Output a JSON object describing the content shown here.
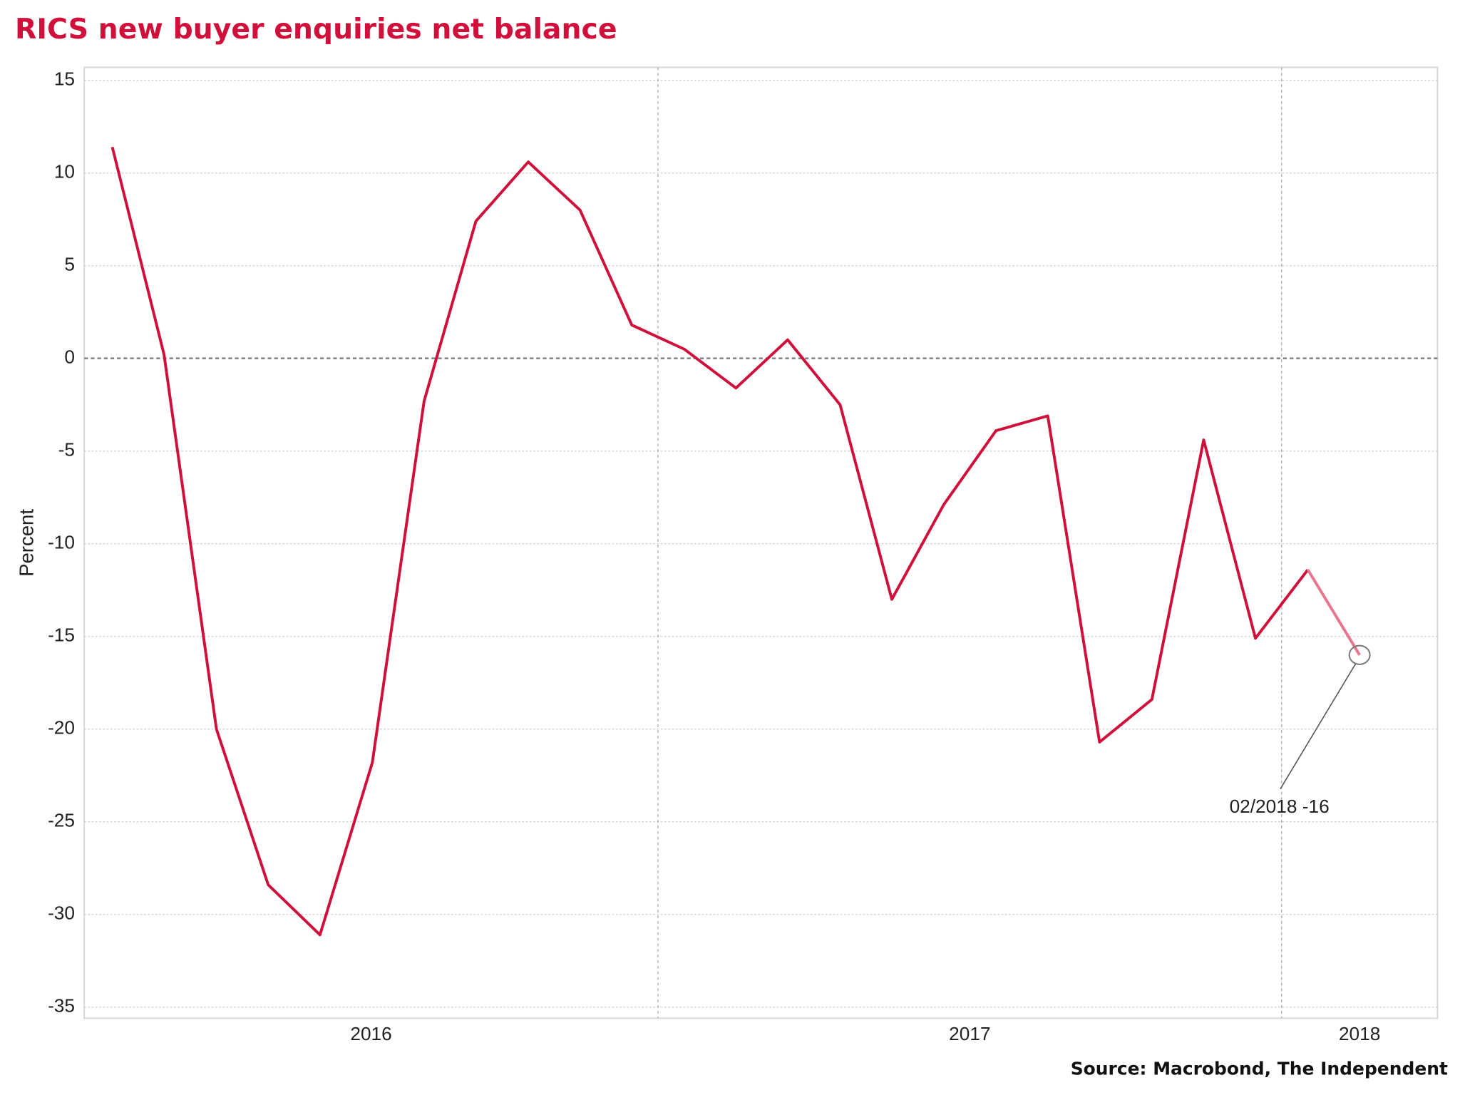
{
  "chart_data": {
    "type": "line",
    "title": "RICS new buyer enquiries net balance",
    "y_label": "Percent",
    "source": "Source: Macrobond, The Independent",
    "x": [
      2016.125,
      2016.208,
      2016.292,
      2016.375,
      2016.458,
      2016.542,
      2016.625,
      2016.708,
      2016.792,
      2016.875,
      2016.958,
      2017.042,
      2017.125,
      2017.208,
      2017.292,
      2017.375,
      2017.458,
      2017.542,
      2017.625,
      2017.708,
      2017.792,
      2017.875,
      2017.958,
      2018.042,
      2018.125
    ],
    "series": [
      {
        "name": "RICS new buyer enquiries net balance",
        "color": "#d0103a",
        "last_color": "#e8758e",
        "values": [
          11.4,
          0.2,
          -20,
          -28.4,
          -31.1,
          -21.8,
          -2.3,
          7.4,
          10.6,
          8.0,
          1.8,
          0.5,
          -1.6,
          1.0,
          -2.5,
          -13.0,
          -7.9,
          -3.9,
          -3.1,
          -20.7,
          -18.4,
          -4.4,
          -15.1,
          -11.4,
          -16
        ]
      }
    ],
    "xlim": [
      2016.08,
      2018.25
    ],
    "ylim": [
      -35.6,
      15.7
    ],
    "xticks": [
      {
        "value": 2016.54,
        "label": "2016"
      },
      {
        "value": 2017.5,
        "label": "2017"
      },
      {
        "value": 2018.125,
        "label": "2018"
      }
    ],
    "xgrid": [
      2017,
      2018
    ],
    "yticks": [
      15,
      10,
      5,
      0,
      -5,
      -10,
      -15,
      -20,
      -25,
      -30,
      -35
    ],
    "grid": true,
    "annotation": {
      "text": "02/2018 -16",
      "index": 24
    }
  }
}
